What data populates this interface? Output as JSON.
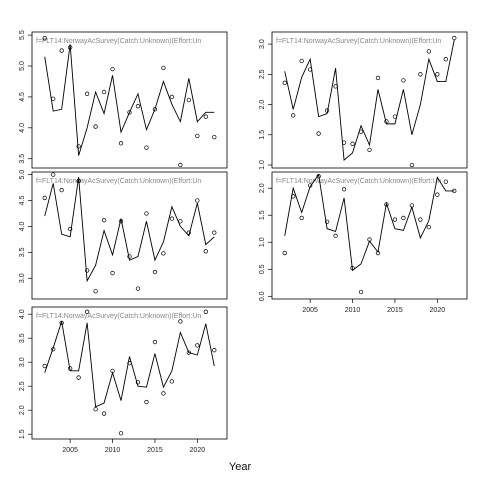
{
  "xlabel": "Year",
  "chart_data": [
    {
      "type": "line",
      "panel_label": "f=FLT14:NorwayAcSurvey(Catch:Unknown)(Effort:Un",
      "xlim": [
        2000.5,
        2023.5
      ],
      "ylim": [
        3.35,
        5.55
      ],
      "yticks": [
        3.5,
        4.0,
        4.5,
        5.0,
        5.5
      ],
      "xticks": [],
      "points": {
        "x": [
          2002,
          2003,
          2004,
          2005,
          2006,
          2007,
          2008,
          2009,
          2010,
          2011,
          2012,
          2013,
          2014,
          2015,
          2016,
          2017,
          2018,
          2019,
          2020,
          2021,
          2022
        ],
        "y": [
          5.45,
          4.47,
          5.25,
          5.3,
          3.7,
          4.55,
          4.02,
          4.58,
          4.95,
          3.75,
          4.25,
          4.35,
          3.68,
          4.3,
          4.97,
          4.5,
          3.4,
          4.45,
          3.87,
          4.18,
          3.85
        ]
      },
      "fitted": {
        "x": [
          2002,
          2003,
          2004,
          2005,
          2006,
          2007,
          2008,
          2009,
          2010,
          2011,
          2012,
          2013,
          2014,
          2015,
          2016,
          2017,
          2018,
          2019,
          2020,
          2021,
          2022
        ],
        "y": [
          5.15,
          4.27,
          4.3,
          5.35,
          3.55,
          4.0,
          4.58,
          4.23,
          4.85,
          3.93,
          4.25,
          4.55,
          3.97,
          4.3,
          4.75,
          4.38,
          4.1,
          4.8,
          4.1,
          4.25,
          4.25
        ]
      }
    },
    {
      "type": "line",
      "panel_label": "f=FLT14:NorwayAcSurvey(Catch:Unknown)(Effort:Un",
      "xlim": [
        2000.5,
        2023.5
      ],
      "ylim": [
        0.95,
        3.2
      ],
      "yticks": [
        1.0,
        1.5,
        2.0,
        2.5,
        3.0
      ],
      "xticks": [],
      "points": {
        "x": [
          2002,
          2003,
          2004,
          2005,
          2006,
          2007,
          2008,
          2009,
          2010,
          2011,
          2012,
          2013,
          2014,
          2015,
          2016,
          2017,
          2018,
          2019,
          2020,
          2021,
          2022
        ],
        "y": [
          2.36,
          1.82,
          2.72,
          2.58,
          1.52,
          1.9,
          2.3,
          1.37,
          1.35,
          1.55,
          1.25,
          2.44,
          1.72,
          1.8,
          2.4,
          1.0,
          2.5,
          2.88,
          2.5,
          2.75,
          3.1
        ]
      },
      "fitted": {
        "x": [
          2002,
          2003,
          2004,
          2005,
          2006,
          2007,
          2008,
          2009,
          2010,
          2011,
          2012,
          2013,
          2014,
          2015,
          2016,
          2017,
          2018,
          2019,
          2020,
          2021,
          2022
        ],
        "y": [
          2.55,
          1.92,
          2.45,
          2.75,
          1.8,
          1.85,
          2.6,
          1.08,
          1.2,
          1.65,
          1.33,
          2.25,
          1.68,
          1.68,
          2.25,
          1.5,
          2.0,
          2.75,
          2.38,
          2.38,
          3.07
        ]
      }
    },
    {
      "type": "line",
      "panel_label": "f=FLT14:NorwayAcSurvey(Catch:Unknown)(Effort:Un",
      "xlim": [
        2000.5,
        2023.5
      ],
      "ylim": [
        2.6,
        5.05
      ],
      "yticks": [
        3.0,
        3.5,
        4.0,
        4.5,
        5.0
      ],
      "xticks": [],
      "points": {
        "x": [
          2002,
          2003,
          2004,
          2005,
          2006,
          2007,
          2008,
          2009,
          2010,
          2011,
          2012,
          2013,
          2014,
          2015,
          2016,
          2017,
          2018,
          2019,
          2020,
          2021,
          2022
        ],
        "y": [
          4.55,
          5.0,
          4.7,
          3.95,
          4.88,
          3.15,
          2.75,
          4.12,
          3.1,
          4.1,
          3.42,
          2.8,
          4.25,
          3.12,
          3.48,
          4.15,
          4.1,
          3.88,
          4.5,
          3.52,
          3.88
        ]
      },
      "fitted": {
        "x": [
          2002,
          2003,
          2004,
          2005,
          2006,
          2007,
          2008,
          2009,
          2010,
          2011,
          2012,
          2013,
          2014,
          2015,
          2016,
          2017,
          2018,
          2019,
          2020,
          2021,
          2022
        ],
        "y": [
          4.2,
          4.83,
          3.85,
          3.8,
          4.95,
          2.95,
          3.25,
          3.92,
          3.45,
          4.15,
          3.35,
          3.42,
          4.1,
          3.35,
          3.7,
          4.38,
          4.0,
          3.82,
          4.45,
          3.65,
          3.8
        ]
      }
    },
    {
      "type": "line",
      "panel_label": "f=FLT14:NorwayAcSurvey(Catch:Unknown)(Effort:Un",
      "xlim": [
        2000.5,
        2023.5
      ],
      "ylim": [
        -0.05,
        2.3
      ],
      "yticks": [
        0.0,
        0.5,
        1.0,
        1.5,
        2.0
      ],
      "xticks": [
        2005,
        2010,
        2015,
        2020
      ],
      "points": {
        "x": [
          2002,
          2003,
          2004,
          2005,
          2006,
          2007,
          2008,
          2009,
          2010,
          2011,
          2012,
          2013,
          2014,
          2015,
          2016,
          2017,
          2018,
          2019,
          2020,
          2021,
          2022
        ],
        "y": [
          0.8,
          1.85,
          1.45,
          2.05,
          2.22,
          1.38,
          1.12,
          1.98,
          0.52,
          0.08,
          1.05,
          0.8,
          1.7,
          1.42,
          1.45,
          1.68,
          1.42,
          1.28,
          1.88,
          2.12,
          1.95
        ]
      },
      "fitted": {
        "x": [
          2002,
          2003,
          2004,
          2005,
          2006,
          2007,
          2008,
          2009,
          2010,
          2011,
          2012,
          2013,
          2014,
          2015,
          2016,
          2017,
          2018,
          2019,
          2020,
          2021,
          2022
        ],
        "y": [
          1.12,
          2.0,
          1.55,
          2.03,
          2.25,
          1.25,
          1.2,
          1.82,
          0.48,
          0.6,
          1.02,
          0.82,
          1.72,
          1.25,
          1.22,
          1.65,
          1.08,
          1.4,
          2.2,
          1.95,
          1.95
        ]
      }
    },
    {
      "type": "line",
      "panel_label": "f=FLT14:NorwayAcSurvey(Catch:Unknown)(Effort:Un",
      "xlim": [
        2000.5,
        2023.5
      ],
      "ylim": [
        1.4,
        4.15
      ],
      "yticks": [
        1.5,
        2.0,
        2.5,
        3.0,
        3.5,
        4.0
      ],
      "xticks": [
        2005,
        2010,
        2015,
        2020
      ],
      "points": {
        "x": [
          2002,
          2003,
          2004,
          2005,
          2006,
          2007,
          2008,
          2009,
          2010,
          2011,
          2012,
          2013,
          2014,
          2015,
          2016,
          2017,
          2018,
          2019,
          2020,
          2021,
          2022
        ],
        "y": [
          2.92,
          3.27,
          3.82,
          2.87,
          2.68,
          4.05,
          2.02,
          1.93,
          2.82,
          1.52,
          2.98,
          2.58,
          2.17,
          3.42,
          2.35,
          2.6,
          3.85,
          3.2,
          3.35,
          4.05,
          3.25
        ]
      },
      "fitted": {
        "x": [
          2002,
          2003,
          2004,
          2005,
          2006,
          2007,
          2008,
          2009,
          2010,
          2011,
          2012,
          2013,
          2014,
          2015,
          2016,
          2017,
          2018,
          2019,
          2020,
          2021,
          2022
        ],
        "y": [
          2.78,
          3.3,
          3.85,
          2.82,
          2.82,
          3.82,
          2.07,
          2.15,
          2.78,
          2.2,
          3.12,
          2.5,
          2.48,
          3.18,
          2.48,
          2.82,
          3.62,
          3.2,
          3.15,
          3.8,
          2.92
        ]
      }
    }
  ]
}
